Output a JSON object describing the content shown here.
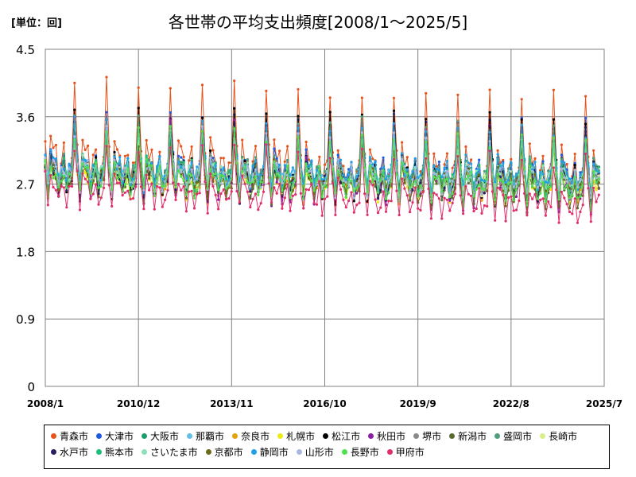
{
  "unit_label": "[単位：回]",
  "chart_data": {
    "type": "line",
    "title": "各世帯の平均支出頻度[2008/1～2025/5]",
    "xlabel": "",
    "ylabel": "",
    "y_ticks": [
      "4.5",
      "3.6",
      "2.7",
      "1.8",
      "0.9",
      "0"
    ],
    "ylim": [
      0,
      4.5
    ],
    "x_ticks": [
      "2008/1",
      "2010/12",
      "2013/11",
      "2016/10",
      "2019/9",
      "2022/8",
      "2025/7"
    ],
    "x_start": "2008-01",
    "x_end": "2025-05",
    "grid": true,
    "legend_position": "bottom",
    "series_note": "monthly values per city; approximate seasonal pattern, peaks each December",
    "series": [
      {
        "name": "青森市",
        "color": "#e8531c",
        "base": 3.1,
        "amp": 0.95,
        "trend": -0.2
      },
      {
        "name": "大津市",
        "color": "#1f5be0",
        "base": 2.95,
        "amp": 0.65,
        "trend": -0.1
      },
      {
        "name": "大阪市",
        "color": "#1a9e6b",
        "base": 2.9,
        "amp": 0.55,
        "trend": -0.1
      },
      {
        "name": "那覇市",
        "color": "#62bfe6",
        "base": 2.9,
        "amp": 0.3,
        "trend": -0.1
      },
      {
        "name": "奈良市",
        "color": "#e3a20f",
        "base": 2.85,
        "amp": 0.55,
        "trend": -0.15
      },
      {
        "name": "札幌市",
        "color": "#eeea16",
        "base": 2.8,
        "amp": 0.5,
        "trend": -0.1
      },
      {
        "name": "松江市",
        "color": "#000000",
        "base": 2.9,
        "amp": 0.75,
        "trend": -0.1
      },
      {
        "name": "秋田市",
        "color": "#8b1fa3",
        "base": 2.85,
        "amp": 0.7,
        "trend": -0.15
      },
      {
        "name": "堺市",
        "color": "#8a8a8a",
        "base": 2.9,
        "amp": 0.5,
        "trend": -0.1
      },
      {
        "name": "新潟市",
        "color": "#5b6b2f",
        "base": 2.85,
        "amp": 0.6,
        "trend": -0.2
      },
      {
        "name": "盛岡市",
        "color": "#4fa07a",
        "base": 2.95,
        "amp": 0.6,
        "trend": -0.1
      },
      {
        "name": "長崎市",
        "color": "#d8ef8a",
        "base": 2.85,
        "amp": 0.4,
        "trend": -0.1
      },
      {
        "name": "水戸市",
        "color": "#262060",
        "base": 2.85,
        "amp": 0.6,
        "trend": -0.1
      },
      {
        "name": "熊本市",
        "color": "#1fbf7a",
        "base": 2.9,
        "amp": 0.5,
        "trend": -0.1
      },
      {
        "name": "さいたま市",
        "color": "#8fe0b8",
        "base": 2.9,
        "amp": 0.35,
        "trend": -0.1
      },
      {
        "name": "京都市",
        "color": "#6b6b1a",
        "base": 2.85,
        "amp": 0.45,
        "trend": -0.1
      },
      {
        "name": "静岡市",
        "color": "#1fa0e8",
        "base": 2.95,
        "amp": 0.55,
        "trend": -0.1
      },
      {
        "name": "山形市",
        "color": "#a8b8e0",
        "base": 2.9,
        "amp": 0.55,
        "trend": -0.15
      },
      {
        "name": "長野市",
        "color": "#4fe04f",
        "base": 2.85,
        "amp": 0.55,
        "trend": -0.15
      },
      {
        "name": "甲府市",
        "color": "#e0306a",
        "base": 2.7,
        "amp": 0.55,
        "trend": -0.25
      }
    ]
  }
}
